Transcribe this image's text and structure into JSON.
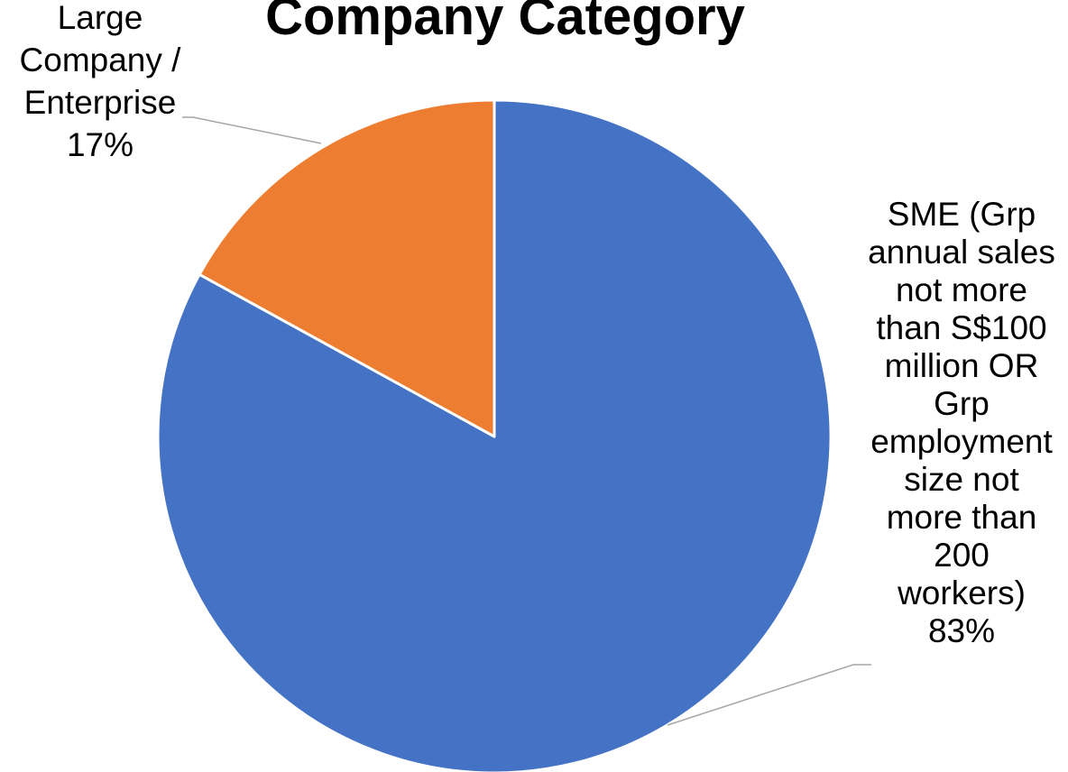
{
  "chart_data": {
    "type": "pie",
    "title": "Company Category",
    "slices": [
      {
        "label_lines": [
          "SME (Grp",
          "annual sales",
          "not more",
          "than S$100",
          "million OR",
          "Grp",
          "employment",
          "size not",
          "more than",
          "200",
          "workers)"
        ],
        "value": 83,
        "percent_label": "83%",
        "color": "#4472C4"
      },
      {
        "label_lines": [
          "Large",
          "Company /",
          "Enterprise"
        ],
        "value": 17,
        "percent_label": "17%",
        "color": "#ED7D31"
      }
    ],
    "start": "12 o'clock",
    "direction": "clockwise",
    "legend": "none",
    "data_labels": "outside-with-leader-lines"
  }
}
